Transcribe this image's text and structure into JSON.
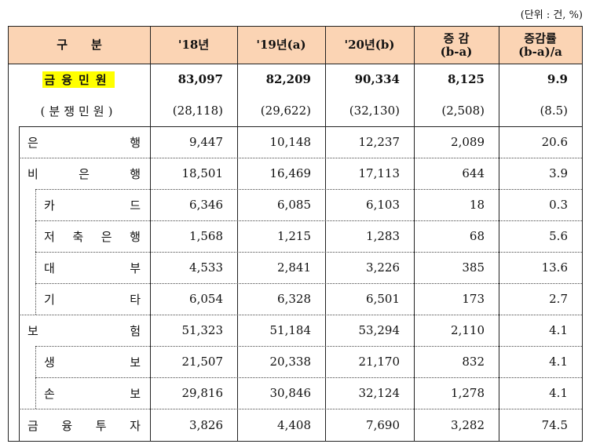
{
  "unit_note": "(단위 : 건, %)",
  "header": {
    "category": "구　　분",
    "y18": "'18년",
    "y19": "'19년(a)",
    "y20": "'20년(b)",
    "change_line1": "증 감",
    "change_line2": "(b-a)",
    "rate_line1": "증감률",
    "rate_line2": "(b-a)/a"
  },
  "header_bg": "#fbd4b4",
  "highlight": "#ffff00",
  "rows": [
    {
      "label": "금융민원",
      "level": "top",
      "values": [
        "83,097",
        "82,209",
        "90,334",
        "8,125",
        "9.9"
      ]
    },
    {
      "label": "(분쟁민원)",
      "level": "top",
      "values": [
        "(28,118)",
        "(29,622)",
        "(32,130)",
        "(2,508)",
        "(8.5)"
      ]
    },
    {
      "label": "은행",
      "level": 1,
      "values": [
        "9,447",
        "10,148",
        "12,237",
        "2,089",
        "20.6"
      ]
    },
    {
      "label": "비은행",
      "level": 1,
      "values": [
        "18,501",
        "16,469",
        "17,113",
        "644",
        "3.9"
      ]
    },
    {
      "label": "카드",
      "level": 2,
      "values": [
        "6,346",
        "6,085",
        "6,103",
        "18",
        "0.3"
      ]
    },
    {
      "label": "저축은행",
      "level": 2,
      "values": [
        "1,568",
        "1,215",
        "1,283",
        "68",
        "5.6"
      ]
    },
    {
      "label": "대부",
      "level": 2,
      "values": [
        "4,533",
        "2,841",
        "3,226",
        "385",
        "13.6"
      ]
    },
    {
      "label": "기타",
      "level": 2,
      "values": [
        "6,054",
        "6,328",
        "6,501",
        "173",
        "2.7"
      ]
    },
    {
      "label": "보험",
      "level": 1,
      "values": [
        "51,323",
        "51,184",
        "53,294",
        "2,110",
        "4.1"
      ]
    },
    {
      "label": "생보",
      "level": 2,
      "values": [
        "21,507",
        "20,338",
        "21,170",
        "832",
        "4.1"
      ]
    },
    {
      "label": "손보",
      "level": 2,
      "values": [
        "29,816",
        "30,846",
        "32,124",
        "1,278",
        "4.1"
      ]
    },
    {
      "label": "금융투자",
      "level": 1,
      "values": [
        "3,826",
        "4,408",
        "7,690",
        "3,282",
        "74.5"
      ]
    }
  ]
}
